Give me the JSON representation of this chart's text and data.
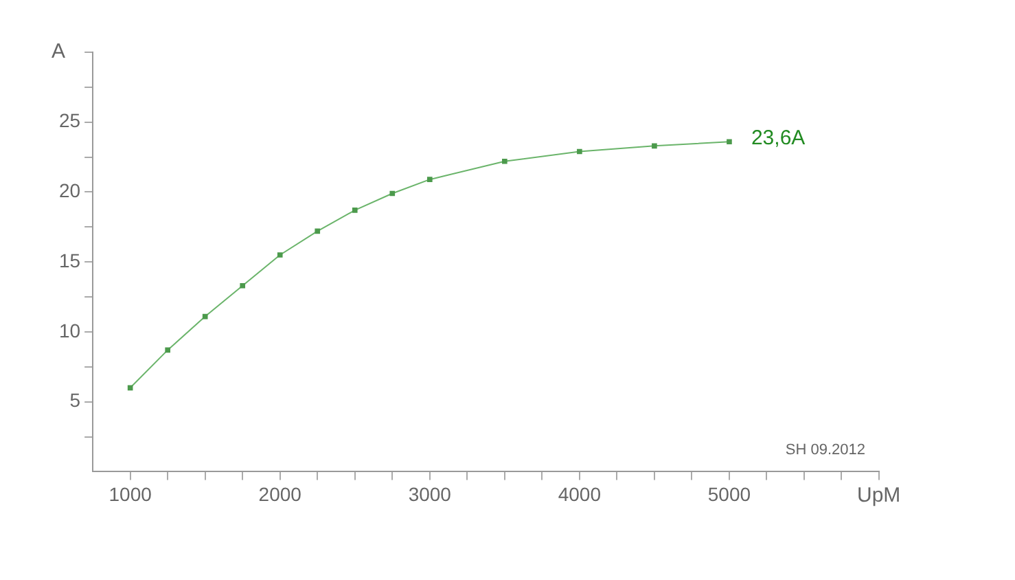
{
  "chart_data": {
    "type": "line",
    "xlabel": "UpM",
    "ylabel": "A",
    "x": [
      1000,
      1250,
      1500,
      1750,
      2000,
      2250,
      2500,
      2750,
      3000,
      3500,
      4000,
      4500,
      5000
    ],
    "series": [
      {
        "color": "#6ab46a",
        "values": [
          6.0,
          8.7,
          11.1,
          13.3,
          15.5,
          17.2,
          18.7,
          19.9,
          20.9,
          22.2,
          22.9,
          23.3,
          23.6
        ]
      }
    ],
    "xlim": [
      750,
      6000
    ],
    "xticks": [
      1000,
      {
        "value": 1250,
        "label": null
      },
      {
        "value": 1500,
        "label": null
      },
      {
        "value": 1750,
        "label": null
      },
      2000,
      {
        "value": 2250,
        "label": null
      },
      {
        "value": 2500,
        "label": null
      },
      {
        "value": 2750,
        "label": null
      },
      3000,
      {
        "value": 3250,
        "label": null
      },
      {
        "value": 3500,
        "label": null
      },
      {
        "value": 3750,
        "label": null
      },
      4000,
      {
        "value": 4250,
        "label": null
      },
      {
        "value": 4500,
        "label": null
      },
      {
        "value": 4750,
        "label": null
      },
      5000,
      {
        "value": 5250,
        "label": null
      },
      {
        "value": 5500,
        "label": null
      },
      {
        "value": 5750,
        "label": null
      },
      {
        "value": 6000,
        "label": null
      }
    ],
    "ylim": [
      0,
      30
    ],
    "yticks": [
      {
        "value": 2.5,
        "label": null
      },
      5,
      {
        "value": 7.5,
        "label": null
      },
      10,
      {
        "value": 12.5,
        "label": null
      },
      15,
      {
        "value": 17.5,
        "label": null
      },
      20,
      {
        "value": 22.5,
        "label": null
      },
      25,
      {
        "value": 27.5,
        "label": null
      },
      {
        "value": 30,
        "label": null
      }
    ],
    "grid": false,
    "legend": false,
    "marker": "square",
    "line_style": "solid",
    "annotations": [
      {
        "text": "23,6A",
        "x": 5000,
        "y": 23.6
      },
      "SH 09.2012"
    ]
  }
}
